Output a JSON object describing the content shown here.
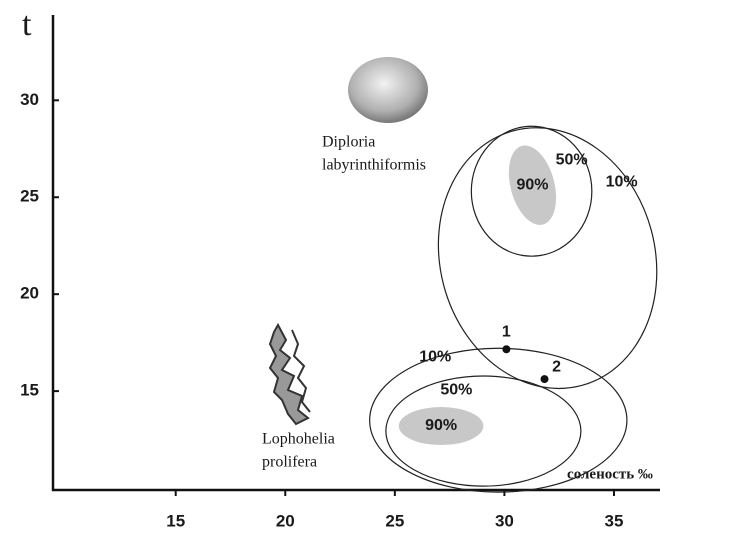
{
  "chart_data": {
    "type": "scatter",
    "y_label": "t",
    "x_label": "соленость ‰",
    "xlim": [
      9.4,
      37.1
    ],
    "ylim": [
      9.9,
      34.4
    ],
    "xticks": [
      15,
      20,
      25,
      30,
      35
    ],
    "yticks": [
      15,
      20,
      25,
      30
    ],
    "regions": [
      {
        "species": [
          "Diploria",
          "labyrinthiformis"
        ],
        "contours": [
          {
            "label": "10%",
            "cx": 31.97,
            "cy": 21.86,
            "rx": 4.9,
            "ry": 6.8,
            "angle": -15,
            "color": "none"
          },
          {
            "label": "50%",
            "cx": 31.24,
            "cy": 25.31,
            "rx": 2.75,
            "ry": 3.35,
            "angle": 0,
            "color": "none"
          },
          {
            "label": "90%",
            "cx": 31.28,
            "cy": 25.62,
            "rx": 1.0,
            "ry": 2.1,
            "angle": -15,
            "color": "#c8c8c8"
          }
        ]
      },
      {
        "species": [
          "Lophohelia",
          "prolifera"
        ],
        "contours": [
          {
            "label": "10%",
            "cx": 29.72,
            "cy": 13.5,
            "rx": 5.87,
            "ry": 3.71,
            "angle": 0,
            "color": "none"
          },
          {
            "label": "50%",
            "cx": 29.04,
            "cy": 12.94,
            "rx": 4.45,
            "ry": 2.84,
            "angle": 0,
            "color": "none"
          },
          {
            "label": "90%",
            "cx": 27.11,
            "cy": 13.2,
            "rx": 1.93,
            "ry": 0.98,
            "angle": 0,
            "color": "#c8c8c8"
          }
        ]
      }
    ],
    "points": [
      {
        "label": "1",
        "x": 30.09,
        "y": 17.16
      },
      {
        "label": "2",
        "x": 31.83,
        "y": 15.62
      }
    ]
  }
}
